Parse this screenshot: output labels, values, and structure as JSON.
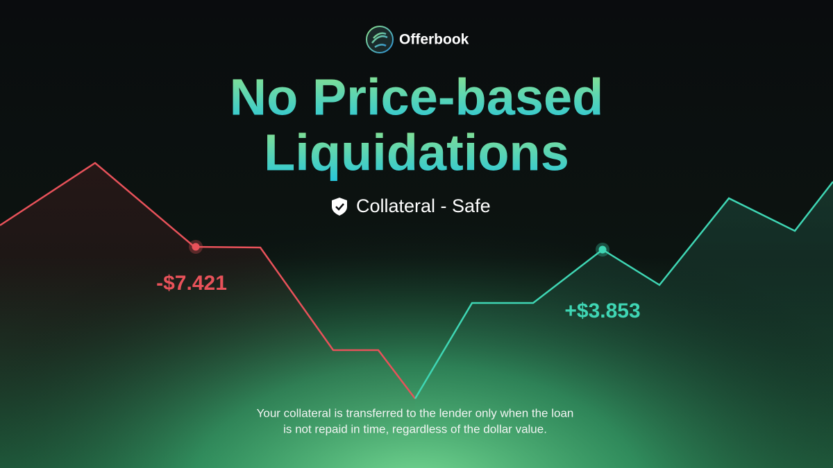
{
  "brand": {
    "name": "Offerbook"
  },
  "headline": {
    "lines": [
      "No Price-based",
      "Liquidations"
    ]
  },
  "badge": {
    "text": "Collateral - Safe"
  },
  "annotations": {
    "loss": "-$7.421",
    "gain": "+$3.853"
  },
  "footer": {
    "lines": [
      "Your collateral is transferred to the lender only when the loan",
      "is not repaid in time, regardless of the dollar value."
    ]
  }
}
